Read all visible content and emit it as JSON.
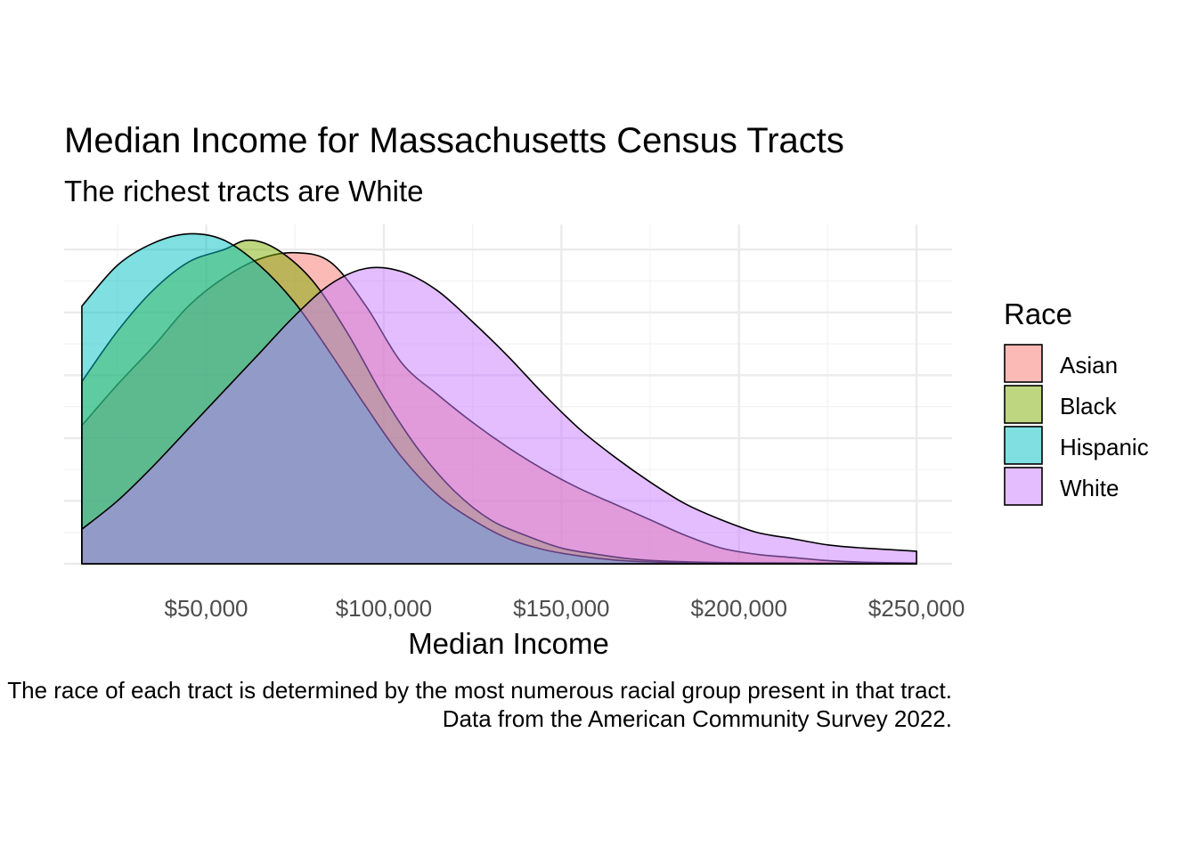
{
  "chart_data": {
    "type": "area",
    "chart_kind": "density",
    "title": "Median Income for Massachusetts Census Tracts",
    "subtitle": "The richest tracts are White",
    "xlabel": "Median Income",
    "ylabel": "",
    "caption_lines": [
      "The race of each tract is determined by the most numerous racial group present in that tract.",
      "Data from the American Community Survey 2022."
    ],
    "xlim": [
      10000,
      260000
    ],
    "ylim": [
      0,
      1
    ],
    "x_ticks": [
      50000,
      100000,
      150000,
      200000,
      250000
    ],
    "x_tick_labels": [
      "$50,000",
      "$100,000",
      "$150,000",
      "$200,000",
      "$250,000"
    ],
    "y_tick_labels_shown": false,
    "fill_opacity": 0.5,
    "grid": true,
    "legend": {
      "title": "Race",
      "position": "right"
    },
    "series": [
      {
        "name": "Asian",
        "color": "#F8766D",
        "points": [
          [
            15000,
            0.44
          ],
          [
            25000,
            0.57
          ],
          [
            35000,
            0.69
          ],
          [
            45000,
            0.82
          ],
          [
            55000,
            0.91
          ],
          [
            65000,
            0.97
          ],
          [
            75000,
            0.99
          ],
          [
            85000,
            0.96
          ],
          [
            95000,
            0.82
          ],
          [
            105000,
            0.64
          ],
          [
            115000,
            0.54
          ],
          [
            125000,
            0.45
          ],
          [
            135000,
            0.37
          ],
          [
            145000,
            0.3
          ],
          [
            155000,
            0.24
          ],
          [
            165000,
            0.19
          ],
          [
            175000,
            0.14
          ],
          [
            185000,
            0.09
          ],
          [
            195000,
            0.05
          ],
          [
            205000,
            0.03
          ],
          [
            215000,
            0.02
          ],
          [
            225000,
            0.01
          ],
          [
            235000,
            0.005
          ],
          [
            250000,
            0.002
          ]
        ]
      },
      {
        "name": "Black",
        "color": "#7CAE00",
        "points": [
          [
            15000,
            0.58
          ],
          [
            25000,
            0.74
          ],
          [
            35000,
            0.87
          ],
          [
            45000,
            0.96
          ],
          [
            55000,
            1.0
          ],
          [
            62000,
            1.03
          ],
          [
            70000,
            1.0
          ],
          [
            80000,
            0.9
          ],
          [
            90000,
            0.73
          ],
          [
            100000,
            0.53
          ],
          [
            110000,
            0.36
          ],
          [
            120000,
            0.23
          ],
          [
            130000,
            0.14
          ],
          [
            140000,
            0.09
          ],
          [
            150000,
            0.05
          ],
          [
            160000,
            0.03
          ],
          [
            170000,
            0.015
          ],
          [
            180000,
            0.008
          ],
          [
            200000,
            0.003
          ],
          [
            250000,
            0.001
          ]
        ]
      },
      {
        "name": "Hispanic",
        "color": "#00BFC4",
        "points": [
          [
            15000,
            0.82
          ],
          [
            25000,
            0.95
          ],
          [
            35000,
            1.02
          ],
          [
            45000,
            1.05
          ],
          [
            55000,
            1.03
          ],
          [
            65000,
            0.95
          ],
          [
            75000,
            0.83
          ],
          [
            85000,
            0.67
          ],
          [
            95000,
            0.5
          ],
          [
            105000,
            0.34
          ],
          [
            115000,
            0.22
          ],
          [
            125000,
            0.14
          ],
          [
            135000,
            0.08
          ],
          [
            145000,
            0.045
          ],
          [
            155000,
            0.025
          ],
          [
            165000,
            0.012
          ],
          [
            175000,
            0.006
          ],
          [
            185000,
            0.003
          ],
          [
            200000,
            0.001
          ],
          [
            250000,
            0.0005
          ]
        ]
      },
      {
        "name": "White",
        "color": "#C77CFF",
        "points": [
          [
            15000,
            0.11
          ],
          [
            25000,
            0.2
          ],
          [
            35000,
            0.31
          ],
          [
            45000,
            0.43
          ],
          [
            55000,
            0.55
          ],
          [
            65000,
            0.67
          ],
          [
            75000,
            0.79
          ],
          [
            85000,
            0.89
          ],
          [
            95000,
            0.94
          ],
          [
            105000,
            0.93
          ],
          [
            115000,
            0.87
          ],
          [
            125000,
            0.77
          ],
          [
            135000,
            0.66
          ],
          [
            145000,
            0.54
          ],
          [
            155000,
            0.43
          ],
          [
            165000,
            0.34
          ],
          [
            175000,
            0.26
          ],
          [
            185000,
            0.19
          ],
          [
            195000,
            0.14
          ],
          [
            205000,
            0.1
          ],
          [
            215000,
            0.08
          ],
          [
            225000,
            0.06
          ],
          [
            235000,
            0.05
          ],
          [
            250000,
            0.04
          ]
        ]
      }
    ]
  }
}
